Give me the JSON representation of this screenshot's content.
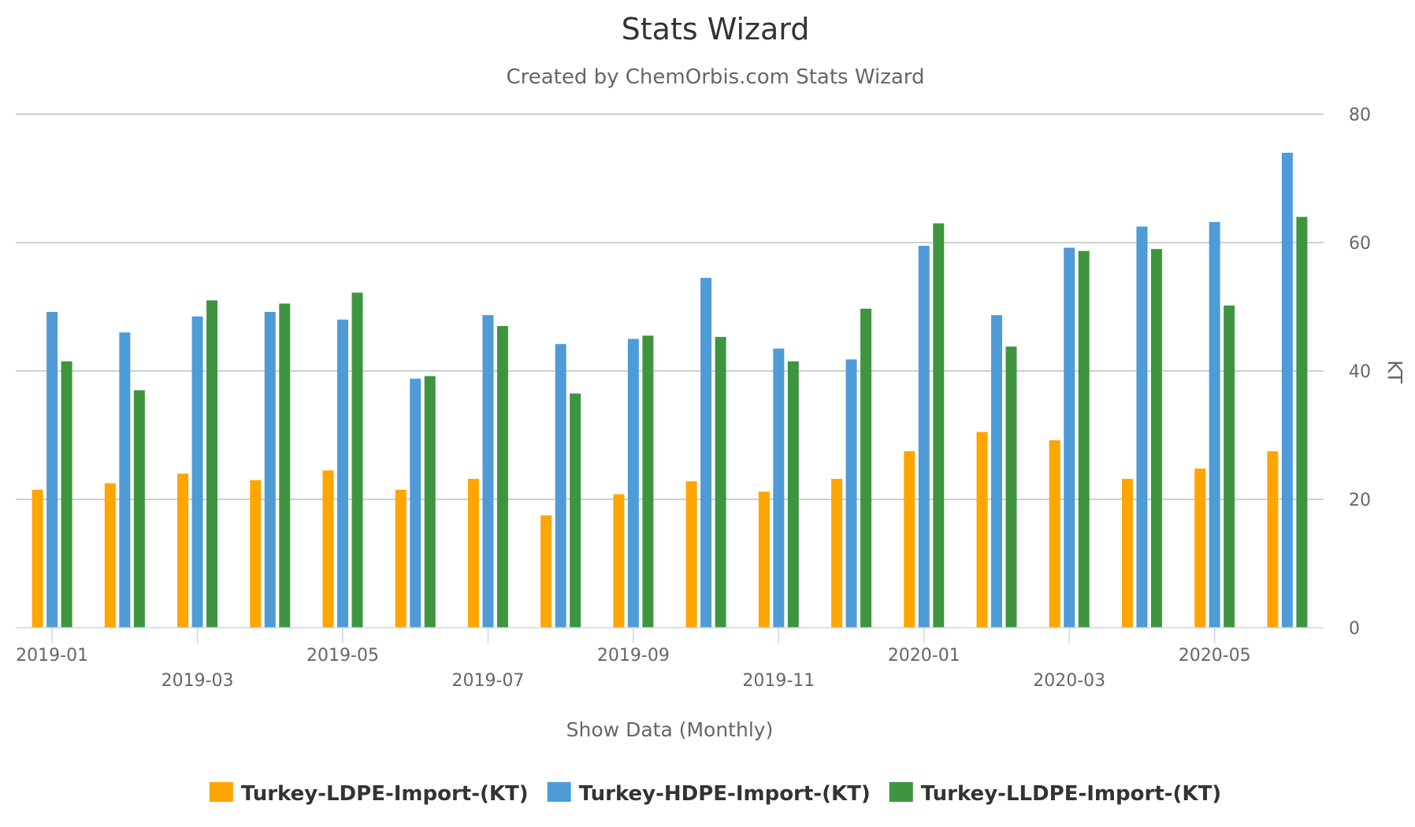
{
  "chart_data": {
    "type": "bar",
    "title": "Stats Wizard",
    "subtitle": "Created by ChemOrbis.com Stats Wizard",
    "xlabel": "Show Data (Monthly)",
    "ylabel": "KT",
    "ylim": [
      0,
      80
    ],
    "yticks": [
      0,
      20,
      40,
      60,
      80
    ],
    "y_axis_side": "right",
    "grid": true,
    "legend_position": "bottom-center",
    "categories": [
      "2019-01",
      "2019-02",
      "2019-03",
      "2019-04",
      "2019-05",
      "2019-06",
      "2019-07",
      "2019-08",
      "2019-09",
      "2019-10",
      "2019-11",
      "2019-12",
      "2020-01",
      "2020-02",
      "2020-03",
      "2020-04",
      "2020-05",
      "2020-06"
    ],
    "x_tick_labels": [
      "2019-01",
      "2019-03",
      "2019-05",
      "2019-07",
      "2019-09",
      "2019-11",
      "2020-01",
      "2020-03",
      "2020-05"
    ],
    "series": [
      {
        "name": "Turkey-LDPE-Import-(KT)",
        "color": "#ffa500",
        "values": [
          21.5,
          22.5,
          24,
          23,
          24.5,
          21.5,
          23.2,
          17.5,
          20.8,
          22.8,
          21.2,
          23.2,
          27.5,
          30.5,
          29.2,
          23.2,
          24.8,
          27.5
        ]
      },
      {
        "name": "Turkey-HDPE-Import-(KT)",
        "color": "#4f9bd8",
        "values": [
          49.2,
          46,
          48.5,
          49.2,
          48,
          38.8,
          48.7,
          44.2,
          45,
          54.5,
          43.5,
          41.8,
          59.5,
          48.7,
          59.2,
          62.5,
          63.2,
          74
        ]
      },
      {
        "name": "Turkey-LLDPE-Import-(KT)",
        "color": "#3f953f",
        "values": [
          41.5,
          37,
          51,
          50.5,
          52.2,
          39.2,
          47,
          36.5,
          45.5,
          45.3,
          41.5,
          49.7,
          63,
          43.8,
          58.7,
          59,
          50.2,
          64
        ]
      }
    ]
  }
}
